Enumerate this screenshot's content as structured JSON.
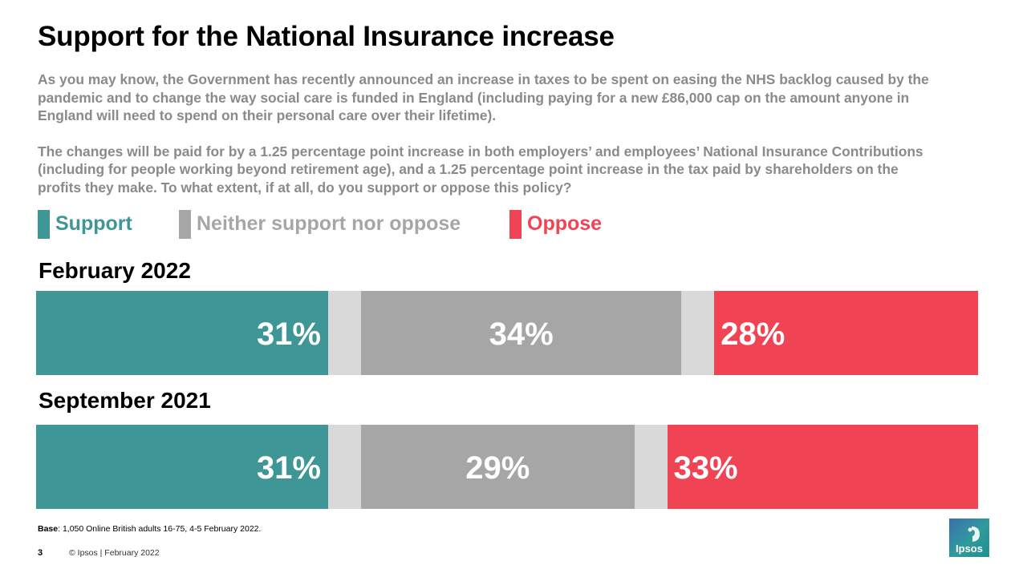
{
  "title": "Support for the National Insurance increase",
  "question": {
    "para1": "As you may know, the Government has recently announced an increase in taxes to be spent on easing the NHS backlog caused by the pandemic and to change the way social care is funded in England (including paying for a new £86,000 cap on the amount anyone in England will need to spend on their personal care over their lifetime).",
    "para2": "The changes will be paid for by a 1.25 percentage point increase in both employers’ and employees’ National Insurance Contributions (including for people working beyond retirement age), and a 1.25 percentage point increase in the tax paid by shareholders on the profits they make. To what extent, if at all, do you support or oppose this policy?"
  },
  "colors": {
    "support": "#3f9696",
    "neither": "#a6a6a6",
    "oppose": "#f04454",
    "gap": "#d9d9d9"
  },
  "chart_data": {
    "type": "bar",
    "orientation": "horizontal-stacked",
    "legend": {
      "placement": "top-left",
      "entries": [
        "Support",
        "Neither support nor oppose",
        "Oppose"
      ]
    },
    "categories": [
      "February 2022",
      "September 2021"
    ],
    "series": [
      {
        "name": "Support",
        "values": [
          31,
          31
        ],
        "labels": [
          "31%",
          "31%"
        ]
      },
      {
        "name": "Neither support nor oppose",
        "values": [
          34,
          29
        ],
        "labels": [
          "34%",
          "29%"
        ]
      },
      {
        "name": "Oppose",
        "values": [
          28,
          33
        ],
        "labels": [
          "28%",
          "33%"
        ]
      }
    ]
  },
  "footer": {
    "base_label": "Base",
    "base_text": ": 1,050 Online British adults 16-75, 4-5 February 2022.",
    "page_number": "3",
    "copyright": "© Ipsos | February 2022",
    "logo_text": "Ipsos"
  }
}
